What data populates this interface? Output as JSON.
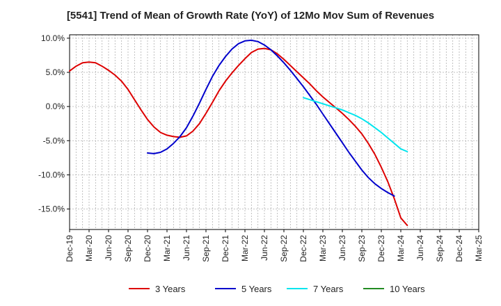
{
  "chart_data": {
    "type": "line",
    "title": "[5541]  Trend of Mean of Growth Rate (YoY) of 12Mo Mov Sum of Revenues",
    "xlabel": "",
    "ylabel": "",
    "ylim": [
      -18.0,
      10.5
    ],
    "y_ticks": [
      10.0,
      5.0,
      0.0,
      -5.0,
      -10.0,
      -15.0
    ],
    "y_tick_labels": [
      "10.0%",
      "5.0%",
      "0.0%",
      "-5.0%",
      "-10.0%",
      "-15.0%"
    ],
    "x_tick_labels": [
      "Dec-19",
      "Mar-20",
      "Jun-20",
      "Sep-20",
      "Dec-20",
      "Mar-21",
      "Jun-21",
      "Sep-21",
      "Dec-21",
      "Mar-22",
      "Jun-22",
      "Sep-22",
      "Dec-22",
      "Mar-23",
      "Jun-23",
      "Sep-23",
      "Dec-23",
      "Mar-24",
      "Jun-24",
      "Sep-24",
      "Dec-24",
      "Mar-25"
    ],
    "grid": true,
    "legend_position": "bottom",
    "series": [
      {
        "name": "3 Years",
        "color": "#dd0000",
        "points": [
          [
            0,
            5.2
          ],
          [
            1,
            5.9
          ],
          [
            2,
            6.4
          ],
          [
            3,
            6.5
          ],
          [
            4,
            6.4
          ],
          [
            5,
            5.9
          ],
          [
            6,
            5.3
          ],
          [
            7,
            4.6
          ],
          [
            8,
            3.7
          ],
          [
            9,
            2.5
          ],
          [
            10,
            1.0
          ],
          [
            11,
            -0.5
          ],
          [
            12,
            -1.9
          ],
          [
            13,
            -3.0
          ],
          [
            14,
            -3.8
          ],
          [
            15,
            -4.2
          ],
          [
            16,
            -4.4
          ],
          [
            17,
            -4.5
          ],
          [
            18,
            -4.3
          ],
          [
            19,
            -3.6
          ],
          [
            20,
            -2.5
          ],
          [
            21,
            -1.0
          ],
          [
            22,
            0.6
          ],
          [
            23,
            2.3
          ],
          [
            24,
            3.7
          ],
          [
            25,
            4.9
          ],
          [
            26,
            6.0
          ],
          [
            27,
            7.0
          ],
          [
            28,
            7.9
          ],
          [
            29,
            8.4
          ],
          [
            30,
            8.5
          ],
          [
            31,
            8.3
          ],
          [
            32,
            7.7
          ],
          [
            33,
            6.9
          ],
          [
            34,
            6.0
          ],
          [
            35,
            5.1
          ],
          [
            36,
            4.2
          ],
          [
            37,
            3.3
          ],
          [
            38,
            2.3
          ],
          [
            39,
            1.4
          ],
          [
            40,
            0.6
          ],
          [
            41,
            -0.2
          ],
          [
            42,
            -1.0
          ],
          [
            43,
            -1.9
          ],
          [
            44,
            -2.9
          ],
          [
            45,
            -4.0
          ],
          [
            46,
            -5.4
          ],
          [
            47,
            -7.0
          ],
          [
            48,
            -8.9
          ],
          [
            49,
            -11.0
          ],
          [
            50,
            -13.5
          ],
          [
            51,
            -16.3
          ],
          [
            52,
            -17.4
          ]
        ]
      },
      {
        "name": "5 Years",
        "color": "#0000cc",
        "points": [
          [
            12,
            -6.8
          ],
          [
            13,
            -6.9
          ],
          [
            14,
            -6.7
          ],
          [
            15,
            -6.2
          ],
          [
            16,
            -5.4
          ],
          [
            17,
            -4.4
          ],
          [
            18,
            -3.1
          ],
          [
            19,
            -1.4
          ],
          [
            20,
            0.5
          ],
          [
            21,
            2.5
          ],
          [
            22,
            4.4
          ],
          [
            23,
            6.0
          ],
          [
            24,
            7.3
          ],
          [
            25,
            8.4
          ],
          [
            26,
            9.2
          ],
          [
            27,
            9.6
          ],
          [
            28,
            9.7
          ],
          [
            29,
            9.5
          ],
          [
            30,
            9.0
          ],
          [
            31,
            8.3
          ],
          [
            32,
            7.4
          ],
          [
            33,
            6.4
          ],
          [
            34,
            5.3
          ],
          [
            35,
            4.1
          ],
          [
            36,
            2.9
          ],
          [
            37,
            1.6
          ],
          [
            38,
            0.3
          ],
          [
            39,
            -1.1
          ],
          [
            40,
            -2.5
          ],
          [
            41,
            -3.9
          ],
          [
            42,
            -5.3
          ],
          [
            43,
            -6.7
          ],
          [
            44,
            -8.0
          ],
          [
            45,
            -9.3
          ],
          [
            46,
            -10.4
          ],
          [
            47,
            -11.3
          ],
          [
            48,
            -12.0
          ],
          [
            49,
            -12.6
          ],
          [
            50,
            -13.1
          ]
        ]
      },
      {
        "name": "7 Years",
        "color": "#00e5ee",
        "points": [
          [
            36,
            1.3
          ],
          [
            37,
            1.0
          ],
          [
            38,
            0.7
          ],
          [
            39,
            0.4
          ],
          [
            40,
            0.1
          ],
          [
            41,
            -0.2
          ],
          [
            42,
            -0.5
          ],
          [
            43,
            -0.9
          ],
          [
            44,
            -1.3
          ],
          [
            45,
            -1.8
          ],
          [
            46,
            -2.4
          ],
          [
            47,
            -3.1
          ],
          [
            48,
            -3.8
          ],
          [
            49,
            -4.6
          ],
          [
            50,
            -5.4
          ],
          [
            51,
            -6.2
          ],
          [
            52,
            -6.6
          ]
        ]
      },
      {
        "name": "10 Years",
        "color": "#228b22",
        "points": []
      }
    ]
  }
}
